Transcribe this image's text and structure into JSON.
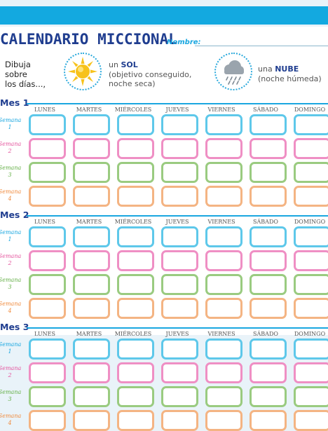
{
  "title": "CALENDARIO MICCIONAL",
  "name_label": "Nombre:",
  "intro_lines": [
    "Dibuja",
    "sobre",
    "los días...,"
  ],
  "sun_legend": {
    "prefix": "un ",
    "word": "SOL",
    "lines": [
      "(objetivo conseguido,",
      "noche seca)"
    ],
    "icon": "sun-icon"
  },
  "cloud_legend": {
    "prefix": "una ",
    "word": "NUBE",
    "lines": [
      "(noche húmeda)"
    ],
    "icon": "rain-cloud-icon"
  },
  "days": [
    "LUNES",
    "MARTES",
    "MIÉRCOLES",
    "JUEVES",
    "VIERNES",
    "SÁBADO",
    "DOMINGO"
  ],
  "week_word": "Semana",
  "weeks": [
    "1",
    "2",
    "3",
    "4"
  ],
  "week_colors": [
    "#5ec8ea",
    "#ef8fc4",
    "#9acb80",
    "#f4b483"
  ],
  "week_label_colors": [
    "#1aa7e0",
    "#e5579f",
    "#66b049",
    "#f08b3e"
  ],
  "months": [
    "Mes 1",
    "Mes 2",
    "Mes 3"
  ],
  "colors": {
    "accent": "#13a9e0",
    "title": "#1f3d8f",
    "sun": "#f7c21b"
  }
}
